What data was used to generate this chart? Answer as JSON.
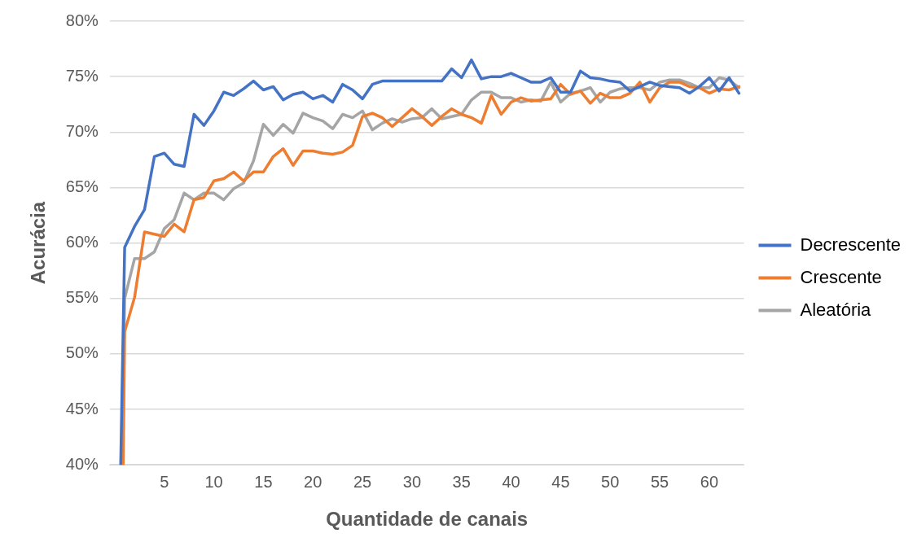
{
  "chart_data": {
    "type": "line",
    "xlabel": "Quantidade de canais",
    "ylabel": "Acurácia",
    "xlim": [
      -0.5,
      63.5
    ],
    "xticks": [
      5,
      10,
      15,
      20,
      25,
      30,
      35,
      40,
      45,
      50,
      55,
      60
    ],
    "ylim": [
      40,
      80
    ],
    "yticks": [
      {
        "value": 40,
        "label": "40%"
      },
      {
        "value": 45,
        "label": "45%"
      },
      {
        "value": 50,
        "label": "50%"
      },
      {
        "value": 55,
        "label": "55%"
      },
      {
        "value": 60,
        "label": "60%"
      },
      {
        "value": 65,
        "label": "65%"
      },
      {
        "value": 70,
        "label": "70%"
      },
      {
        "value": 75,
        "label": "75%"
      },
      {
        "value": 80,
        "label": "80%"
      }
    ],
    "grid": "y",
    "legend": "right",
    "marker": "none",
    "line_style": "solid",
    "x": [
      0.6,
      1,
      2,
      3,
      4,
      5,
      6,
      7,
      8,
      9,
      10,
      11,
      12,
      13,
      14,
      15,
      16,
      17,
      18,
      19,
      20,
      21,
      22,
      23,
      24,
      25,
      26,
      27,
      28,
      29,
      30,
      31,
      32,
      33,
      34,
      35,
      36,
      37,
      38,
      39,
      40,
      41,
      42,
      43,
      44,
      45,
      46,
      47,
      48,
      49,
      50,
      51,
      52,
      53,
      54,
      55,
      56,
      57,
      58,
      59,
      60,
      61,
      62,
      63
    ],
    "series": [
      {
        "name": "Decrescente",
        "color": "#4472c4",
        "values": [
          40,
          59.6,
          61.5,
          63.0,
          67.8,
          68.1,
          67.1,
          66.9,
          71.6,
          70.6,
          71.9,
          73.6,
          73.3,
          73.9,
          74.6,
          73.8,
          74.1,
          72.9,
          73.4,
          73.6,
          73.0,
          73.3,
          72.7,
          74.3,
          73.8,
          73.0,
          74.3,
          74.6,
          74.6,
          74.6,
          74.6,
          74.6,
          74.6,
          74.6,
          75.7,
          74.9,
          76.5,
          74.8,
          75.0,
          75.0,
          75.3,
          74.9,
          74.5,
          74.5,
          74.9,
          73.6,
          73.6,
          75.5,
          74.9,
          74.8,
          74.6,
          74.5,
          73.7,
          74.1,
          74.5,
          74.2,
          74.1,
          74.0,
          73.5,
          74.1,
          74.9,
          73.7,
          74.9,
          73.5
        ]
      },
      {
        "name": "Crescente",
        "color": "#ed7d31",
        "x": [
          0.85,
          1,
          2,
          3,
          4,
          5,
          6,
          7,
          8,
          9,
          10,
          11,
          12,
          13,
          14,
          15,
          16,
          17,
          18,
          19,
          20,
          21,
          22,
          23,
          24,
          25,
          26,
          27,
          28,
          29,
          30,
          31,
          32,
          33,
          34,
          35,
          36,
          37,
          38,
          39,
          40,
          41,
          42,
          43,
          44,
          45,
          46,
          47,
          48,
          49,
          50,
          51,
          52,
          53,
          54,
          55,
          56,
          57,
          58,
          59,
          60,
          61,
          62,
          63
        ],
        "values": [
          40,
          52.0,
          55.1,
          61.0,
          60.8,
          60.6,
          61.7,
          61.0,
          63.9,
          64.1,
          65.6,
          65.8,
          66.4,
          65.6,
          66.4,
          66.4,
          67.8,
          68.5,
          67.0,
          68.3,
          68.3,
          68.1,
          68.0,
          68.2,
          68.8,
          71.4,
          71.7,
          71.3,
          70.5,
          71.3,
          72.1,
          71.4,
          70.6,
          71.4,
          72.1,
          71.6,
          71.3,
          70.8,
          73.3,
          71.6,
          72.7,
          73.1,
          72.8,
          72.9,
          73.0,
          74.3,
          73.4,
          73.7,
          72.6,
          73.5,
          73.1,
          73.1,
          73.5,
          74.5,
          72.7,
          74.0,
          74.5,
          74.5,
          74.1,
          74.0,
          73.5,
          73.9,
          73.8,
          74.1
        ]
      },
      {
        "name": "Aleatória",
        "color": "#a5a5a5",
        "x": [
          0.75,
          1,
          2,
          3,
          4,
          5,
          6,
          7,
          8,
          9,
          10,
          11,
          12,
          13,
          14,
          15,
          16,
          17,
          18,
          19,
          20,
          21,
          22,
          23,
          24,
          25,
          26,
          27,
          28,
          29,
          30,
          31,
          32,
          33,
          34,
          35,
          36,
          37,
          38,
          39,
          40,
          41,
          42,
          43,
          44,
          45,
          46,
          47,
          48,
          49,
          50,
          51,
          52,
          53,
          54,
          55,
          56,
          57,
          58,
          59,
          60,
          61,
          62,
          63
        ],
        "values": [
          40,
          55.0,
          58.6,
          58.6,
          59.2,
          61.3,
          62.1,
          64.5,
          63.9,
          64.5,
          64.5,
          63.9,
          64.9,
          65.4,
          67.4,
          70.7,
          69.7,
          70.7,
          69.9,
          71.7,
          71.3,
          71.0,
          70.3,
          71.6,
          71.3,
          71.9,
          70.2,
          70.8,
          71.2,
          70.9,
          71.2,
          71.3,
          72.1,
          71.2,
          71.4,
          71.6,
          72.9,
          73.6,
          73.6,
          73.1,
          73.1,
          72.7,
          72.9,
          72.8,
          74.5,
          72.7,
          73.5,
          73.7,
          74.0,
          72.7,
          73.6,
          73.9,
          74.0,
          74.0,
          73.8,
          74.5,
          74.7,
          74.7,
          74.4,
          74.0,
          74.0,
          74.9,
          74.7,
          74.0
        ]
      }
    ]
  }
}
